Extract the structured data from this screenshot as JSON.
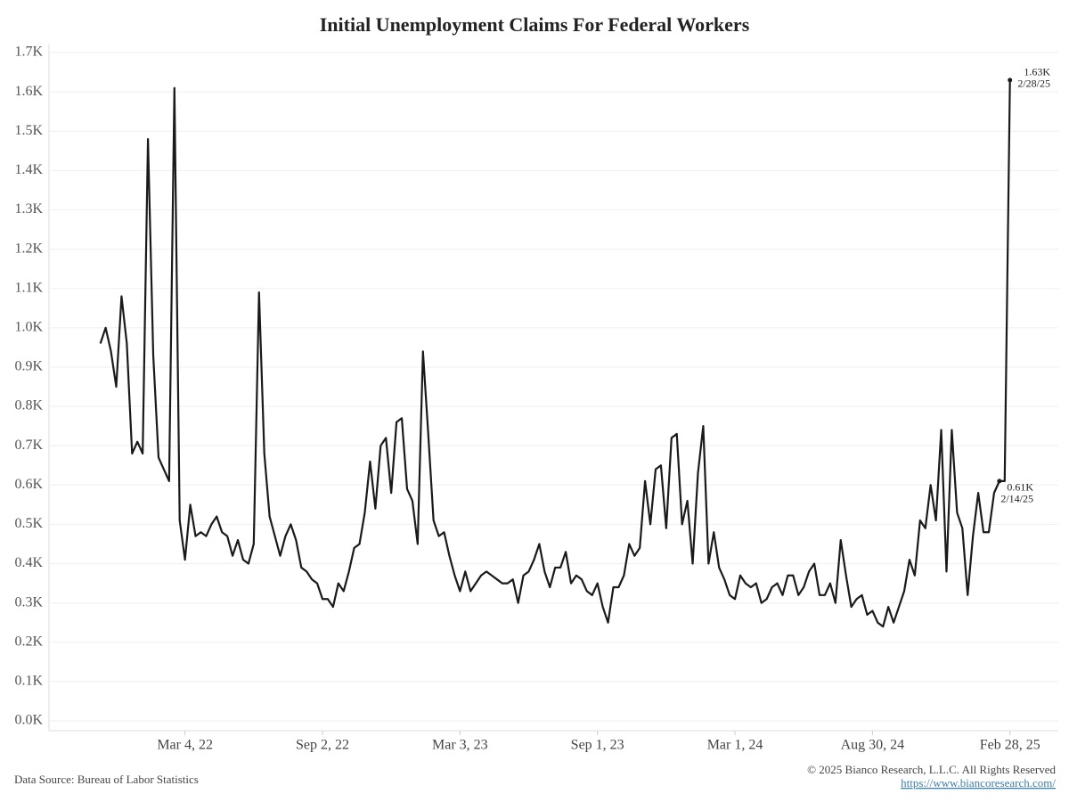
{
  "chart_data": {
    "type": "line",
    "title": "Initial Unemployment Claims For Federal Workers",
    "x": [
      "2021-11-12",
      "2021-11-19",
      "2021-11-26",
      "2021-12-03",
      "2021-12-10",
      "2021-12-17",
      "2021-12-24",
      "2021-12-31",
      "2022-01-07",
      "2022-01-14",
      "2022-01-21",
      "2022-01-28",
      "2022-02-04",
      "2022-02-11",
      "2022-02-18",
      "2022-02-25",
      "2022-03-04",
      "2022-03-11",
      "2022-03-18",
      "2022-03-25",
      "2022-04-01",
      "2022-04-08",
      "2022-04-15",
      "2022-04-22",
      "2022-04-29",
      "2022-05-06",
      "2022-05-13",
      "2022-05-20",
      "2022-05-27",
      "2022-06-03",
      "2022-06-10",
      "2022-06-17",
      "2022-06-24",
      "2022-07-01",
      "2022-07-08",
      "2022-07-15",
      "2022-07-22",
      "2022-07-29",
      "2022-08-05",
      "2022-08-12",
      "2022-08-19",
      "2022-08-26",
      "2022-09-02",
      "2022-09-09",
      "2022-09-16",
      "2022-09-23",
      "2022-09-30",
      "2022-10-07",
      "2022-10-14",
      "2022-10-21",
      "2022-10-28",
      "2022-11-04",
      "2022-11-11",
      "2022-11-18",
      "2022-11-25",
      "2022-12-02",
      "2022-12-09",
      "2022-12-16",
      "2022-12-23",
      "2022-12-30",
      "2023-01-06",
      "2023-01-13",
      "2023-01-20",
      "2023-01-27",
      "2023-02-03",
      "2023-02-10",
      "2023-02-17",
      "2023-02-24",
      "2023-03-03",
      "2023-03-10",
      "2023-03-17",
      "2023-03-24",
      "2023-03-31",
      "2023-04-07",
      "2023-04-14",
      "2023-04-21",
      "2023-04-28",
      "2023-05-05",
      "2023-05-12",
      "2023-05-19",
      "2023-05-26",
      "2023-06-02",
      "2023-06-09",
      "2023-06-16",
      "2023-06-23",
      "2023-06-30",
      "2023-07-07",
      "2023-07-14",
      "2023-07-21",
      "2023-07-28",
      "2023-08-04",
      "2023-08-11",
      "2023-08-18",
      "2023-08-25",
      "2023-09-01",
      "2023-09-08",
      "2023-09-15",
      "2023-09-22",
      "2023-09-29",
      "2023-10-06",
      "2023-10-13",
      "2023-10-20",
      "2023-10-27",
      "2023-11-03",
      "2023-11-10",
      "2023-11-17",
      "2023-11-24",
      "2023-12-01",
      "2023-12-08",
      "2023-12-15",
      "2023-12-22",
      "2023-12-29",
      "2024-01-05",
      "2024-01-12",
      "2024-01-19",
      "2024-01-26",
      "2024-02-02",
      "2024-02-09",
      "2024-02-16",
      "2024-02-23",
      "2024-03-01",
      "2024-03-08",
      "2024-03-15",
      "2024-03-22",
      "2024-03-29",
      "2024-04-05",
      "2024-04-12",
      "2024-04-19",
      "2024-04-26",
      "2024-05-03",
      "2024-05-10",
      "2024-05-17",
      "2024-05-24",
      "2024-05-31",
      "2024-06-07",
      "2024-06-14",
      "2024-06-21",
      "2024-06-28",
      "2024-07-05",
      "2024-07-12",
      "2024-07-19",
      "2024-07-26",
      "2024-08-02",
      "2024-08-09",
      "2024-08-16",
      "2024-08-23",
      "2024-08-30",
      "2024-09-06",
      "2024-09-13",
      "2024-09-20",
      "2024-09-27",
      "2024-10-04",
      "2024-10-11",
      "2024-10-18",
      "2024-10-25",
      "2024-11-01",
      "2024-11-08",
      "2024-11-15",
      "2024-11-22",
      "2024-11-29",
      "2024-12-06",
      "2024-12-13",
      "2024-12-20",
      "2024-12-27",
      "2025-01-03",
      "2025-01-10",
      "2025-01-17",
      "2025-01-24",
      "2025-01-31",
      "2025-02-07",
      "2025-02-14",
      "2025-02-21",
      "2025-02-28"
    ],
    "values": [
      0.96,
      1.0,
      0.94,
      0.85,
      1.08,
      0.96,
      0.68,
      0.71,
      0.68,
      1.48,
      0.93,
      0.67,
      0.64,
      0.61,
      1.61,
      0.51,
      0.41,
      0.55,
      0.47,
      0.48,
      0.47,
      0.5,
      0.52,
      0.48,
      0.47,
      0.42,
      0.46,
      0.41,
      0.4,
      0.45,
      1.09,
      0.68,
      0.52,
      0.47,
      0.42,
      0.47,
      0.5,
      0.46,
      0.39,
      0.38,
      0.36,
      0.35,
      0.31,
      0.31,
      0.29,
      0.35,
      0.33,
      0.38,
      0.44,
      0.45,
      0.53,
      0.66,
      0.54,
      0.7,
      0.72,
      0.58,
      0.76,
      0.77,
      0.59,
      0.56,
      0.45,
      0.94,
      0.73,
      0.51,
      0.47,
      0.48,
      0.42,
      0.37,
      0.33,
      0.38,
      0.33,
      0.35,
      0.37,
      0.38,
      0.37,
      0.36,
      0.35,
      0.35,
      0.36,
      0.3,
      0.37,
      0.38,
      0.41,
      0.45,
      0.38,
      0.34,
      0.39,
      0.39,
      0.43,
      0.35,
      0.37,
      0.36,
      0.33,
      0.32,
      0.35,
      0.29,
      0.25,
      0.34,
      0.34,
      0.37,
      0.45,
      0.42,
      0.44,
      0.61,
      0.5,
      0.64,
      0.65,
      0.49,
      0.72,
      0.73,
      0.5,
      0.56,
      0.4,
      0.63,
      0.75,
      0.4,
      0.48,
      0.39,
      0.36,
      0.32,
      0.31,
      0.37,
      0.35,
      0.34,
      0.35,
      0.3,
      0.31,
      0.34,
      0.35,
      0.32,
      0.37,
      0.37,
      0.32,
      0.34,
      0.38,
      0.4,
      0.32,
      0.32,
      0.35,
      0.3,
      0.46,
      0.37,
      0.29,
      0.31,
      0.32,
      0.27,
      0.28,
      0.25,
      0.24,
      0.29,
      0.25,
      0.29,
      0.33,
      0.41,
      0.37,
      0.51,
      0.49,
      0.6,
      0.51,
      0.74,
      0.38,
      0.74,
      0.53,
      0.49,
      0.32,
      0.47,
      0.58,
      0.48,
      0.48,
      0.58,
      0.61,
      0.61,
      1.63
    ],
    "color": "#1a1a1a",
    "xlim": [
      "2021-09-05",
      "2025-05-03"
    ],
    "xticks": [
      {
        "value": "2022-03-04",
        "label": "Mar 4, 22"
      },
      {
        "value": "2022-09-02",
        "label": "Sep 2, 22"
      },
      {
        "value": "2023-03-03",
        "label": "Mar 3, 23"
      },
      {
        "value": "2023-09-01",
        "label": "Sep 1, 23"
      },
      {
        "value": "2024-03-01",
        "label": "Mar 1, 24"
      },
      {
        "value": "2024-08-30",
        "label": "Aug 30, 24"
      },
      {
        "value": "2025-02-28",
        "label": "Feb 28, 25"
      }
    ],
    "ylim": [
      0,
      1.7
    ],
    "yticks": [
      {
        "value": 0,
        "label": "0.0K"
      },
      {
        "value": 0.1,
        "label": "0.1K"
      },
      {
        "value": 0.2,
        "label": "0.2K"
      },
      {
        "value": 0.3,
        "label": "0.3K"
      },
      {
        "value": 0.4,
        "label": "0.4K"
      },
      {
        "value": 0.5,
        "label": "0.5K"
      },
      {
        "value": 0.6,
        "label": "0.6K"
      },
      {
        "value": 0.7,
        "label": "0.7K"
      },
      {
        "value": 0.8,
        "label": "0.8K"
      },
      {
        "value": 0.9,
        "label": "0.9K"
      },
      {
        "value": 1.0,
        "label": "1.0K"
      },
      {
        "value": 1.1,
        "label": "1.1K"
      },
      {
        "value": 1.2,
        "label": "1.2K"
      },
      {
        "value": 1.3,
        "label": "1.3K"
      },
      {
        "value": 1.4,
        "label": "1.4K"
      },
      {
        "value": 1.5,
        "label": "1.5K"
      },
      {
        "value": 1.6,
        "label": "1.6K"
      },
      {
        "value": 1.7,
        "label": "1.7K"
      }
    ],
    "grid": true,
    "annotations": [
      {
        "x": "2025-02-28",
        "y": 1.63,
        "label": "1.63K",
        "date_label": "2/28/25"
      },
      {
        "x": "2025-02-14",
        "y": 0.61,
        "label": "0.61K",
        "date_label": "2/14/25"
      }
    ],
    "source": "Data Source: Bureau of Labor Statistics",
    "copyright": "© 2025  Bianco Research, L.L.C. All Rights Reserved",
    "url": "https://www.biancoresearch.com/"
  }
}
